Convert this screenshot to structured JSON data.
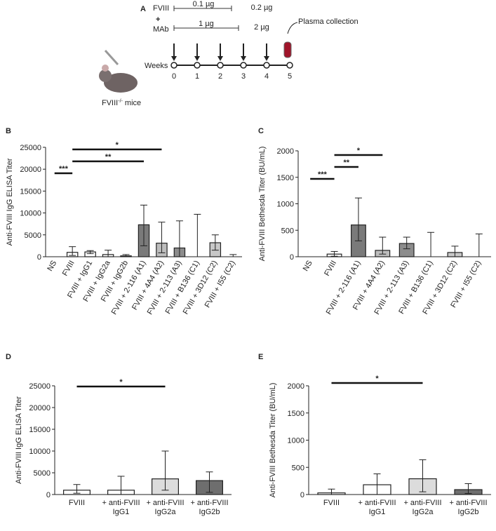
{
  "schema": {
    "panel": "A",
    "fviii": "FVIII",
    "plus": "+",
    "mab": "MAb",
    "dose_fviii_1": "0.1 µg",
    "dose_fviii_2": "0.2 µg",
    "dose_mab_1": "1 µg",
    "dose_mab_2": "2 µg",
    "collection": "Plasma collection",
    "weeks_label": "Weeks",
    "weeks": [
      "0",
      "1",
      "2",
      "3",
      "4",
      "5"
    ],
    "mouse": [
      "FVIII",
      "-/-",
      " mice"
    ]
  },
  "chart_data": [
    {
      "type": "bar",
      "panel": "B",
      "ylabel": "Anti-FVIII IgG ELISA Titer",
      "categories": [
        "NS",
        "FVIII",
        "FVIII + IgG1",
        "FVIII + IgG2a",
        "FVIII + IgG2b",
        "FVIII + 2-116 (A1)",
        "FVIII + 4A4 (A2)",
        "FVIII + 2-113 (A3)",
        "FVIII + B136 (C1)",
        "FVIII + 3D12 (C2)",
        "FVIII + I55 (C2)"
      ],
      "values": [
        0,
        1000,
        1100,
        500,
        200,
        7300,
        3100,
        2000,
        0,
        3200,
        0
      ],
      "upper": [
        0,
        2300,
        1400,
        1500,
        500,
        11800,
        7900,
        8200,
        9700,
        5000,
        500
      ],
      "lower": [
        0,
        300,
        700,
        0,
        0,
        2500,
        900,
        0,
        0,
        1500,
        0
      ],
      "colors": [
        "#ffffff",
        "#ffffff",
        "#ffffff",
        "#ffffff",
        "#ffffff",
        "#7a7a7a",
        "#bdbdbd",
        "#8c8c8c",
        "#ffffff",
        "#c8c8c8",
        "#ffffff"
      ],
      "ylim": [
        0,
        25000
      ],
      "yticks": [
        0,
        5000,
        10000,
        15000,
        20000,
        25000
      ],
      "comparisons": [
        {
          "between": [
            "NS",
            "FVIII"
          ],
          "label": "***"
        },
        {
          "between": [
            "FVIII",
            "FVIII + 2-116 (A1)"
          ],
          "label": "**"
        },
        {
          "between": [
            "FVIII",
            "FVIII + 4A4 (A2)"
          ],
          "label": "*"
        }
      ]
    },
    {
      "type": "bar",
      "panel": "C",
      "ylabel": "Anti-FVIII Bethesda Titer (BU/mL)",
      "categories": [
        "NS",
        "FVIII",
        "FVIII + 2-116 (A1)",
        "FVIII + 4A4 (A2)",
        "FVIII + 2-113 (A3)",
        "FVIII + B136 (C1)",
        "FVIII + 3D12 (C2)",
        "FVIII + I55 (C2)"
      ],
      "values": [
        0,
        50,
        600,
        120,
        250,
        0,
        80,
        0
      ],
      "upper": [
        0,
        100,
        1110,
        370,
        370,
        460,
        200,
        430
      ],
      "lower": [
        0,
        10,
        300,
        50,
        150,
        0,
        0,
        0
      ],
      "colors": [
        "#ffffff",
        "#ffffff",
        "#7a7a7a",
        "#bdbdbd",
        "#8c8c8c",
        "#ffffff",
        "#c8c8c8",
        "#ffffff"
      ],
      "ylim": [
        0,
        2000
      ],
      "yticks": [
        0,
        500,
        1000,
        1500,
        2000
      ],
      "comparisons": [
        {
          "between": [
            "NS",
            "FVIII"
          ],
          "label": "***"
        },
        {
          "between": [
            "FVIII",
            "FVIII + 2-116 (A1)"
          ],
          "label": "**"
        },
        {
          "between": [
            "FVIII",
            "FVIII + 4A4 (A2)"
          ],
          "label": "*"
        }
      ]
    },
    {
      "type": "bar",
      "panel": "D",
      "ylabel": "Anti-FVIII IgG ELISA Titer",
      "categories": [
        "FVIII",
        "+ anti-FVIII IgG1",
        "+ anti-FVIII IgG2a",
        "+ anti-FVIII IgG2b"
      ],
      "values": [
        1000,
        1000,
        3600,
        3200
      ],
      "upper": [
        2300,
        4200,
        10000,
        5200
      ],
      "lower": [
        300,
        0,
        1000,
        500
      ],
      "colors": [
        "#ffffff",
        "#ffffff",
        "#dcdcdc",
        "#6e6e6e"
      ],
      "ylim": [
        0,
        25000
      ],
      "yticks": [
        0,
        5000,
        10000,
        15000,
        20000,
        25000
      ],
      "comparisons": [
        {
          "between": [
            "FVIII",
            "+ anti-FVIII IgG2a"
          ],
          "label": "*"
        }
      ]
    },
    {
      "type": "bar",
      "panel": "E",
      "ylabel": "Anti-FVIII Bethesda Titer (BU/mL)",
      "categories": [
        "FVIII",
        "+ anti-FVIII IgG1",
        "+ anti-FVIII IgG2a",
        "+ anti-FVIII IgG2b"
      ],
      "values": [
        30,
        180,
        290,
        90
      ],
      "upper": [
        100,
        380,
        640,
        200
      ],
      "lower": [
        0,
        0,
        50,
        20
      ],
      "colors": [
        "#ffffff",
        "#ffffff",
        "#dcdcdc",
        "#6e6e6e"
      ],
      "ylim": [
        0,
        2000
      ],
      "yticks": [
        0,
        500,
        1000,
        1500,
        2000
      ],
      "comparisons": [
        {
          "between": [
            "FVIII",
            "+ anti-FVIII IgG2a"
          ],
          "label": "*"
        }
      ]
    }
  ]
}
